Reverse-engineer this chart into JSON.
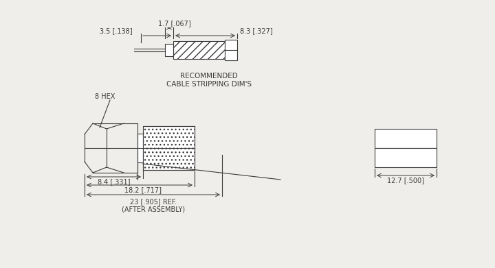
{
  "bg_color": "#f0eeea",
  "line_color": "#3a3a3a",
  "hatch_color": "#3a3a3a",
  "dim_color": "#3a3a3a",
  "text_color": "#3a3a3a",
  "font_size": 7,
  "title": "RECOMMENDED\nCABLE STRIPPING DIM'S",
  "labels": {
    "dim_1_7": "1.7 [.067]",
    "dim_3_5": "3.5 [.138]",
    "dim_8_3": "8.3 [.327]",
    "dim_8_4": "8.4 [.331]",
    "dim_18_2": "18.2 [.717]",
    "dim_23": "23 [.905] REF.\n(AFTER ASSEMBLY)",
    "dim_12_7": "12.7 [.500]",
    "hex_label": "8 HEX"
  }
}
